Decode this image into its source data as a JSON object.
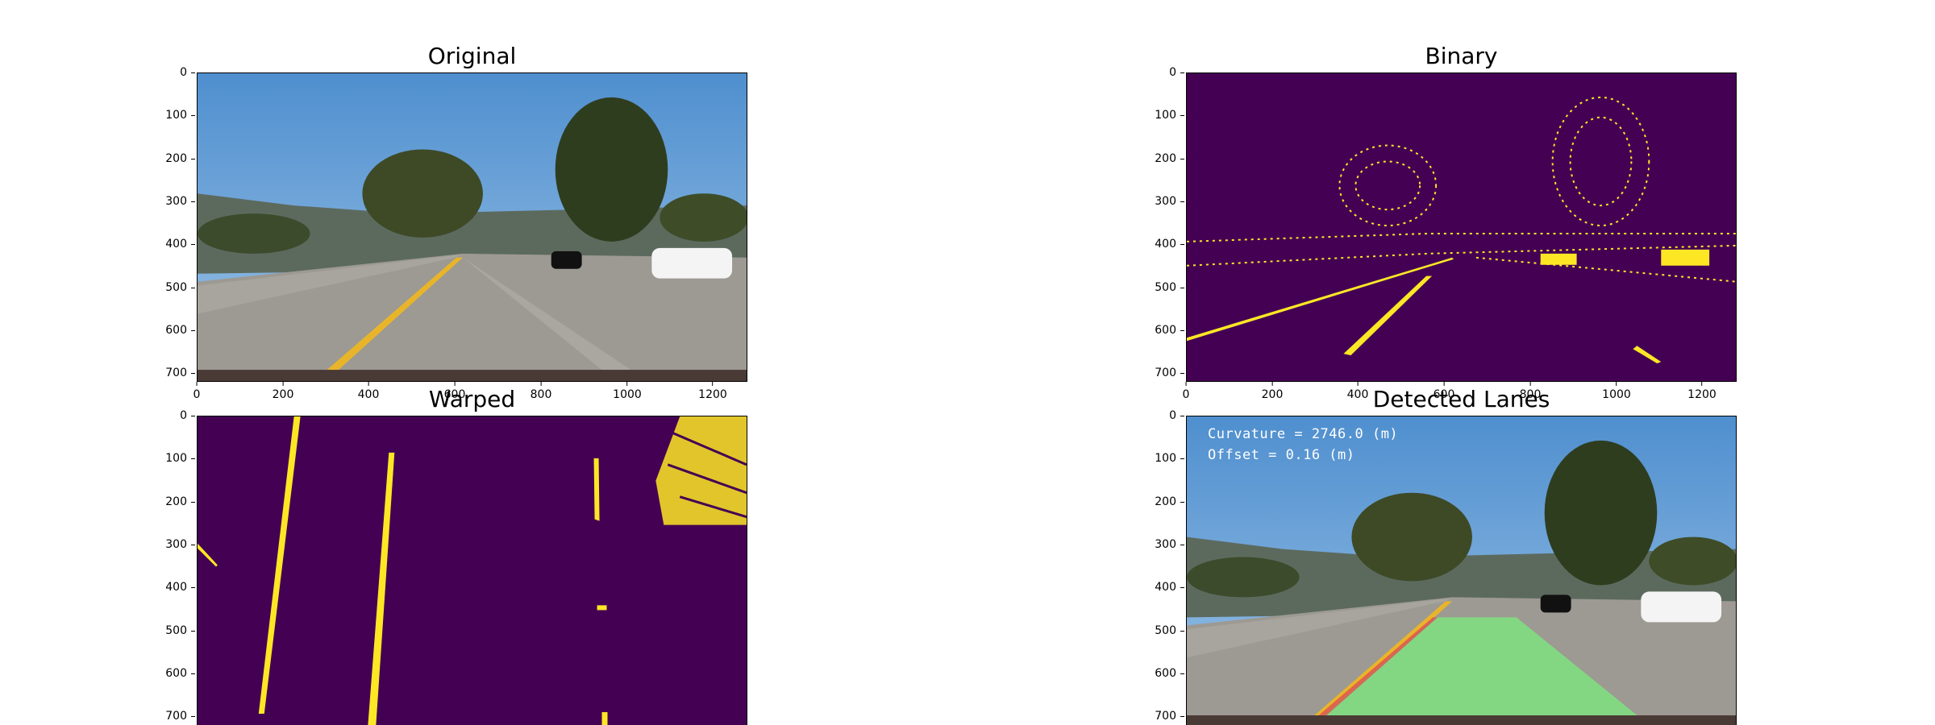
{
  "panels": {
    "original": {
      "title": "Original"
    },
    "binary": {
      "title": "Binary"
    },
    "warped": {
      "title": "Warped"
    },
    "detected": {
      "title": "Detected Lanes",
      "curvature": "Curvature = 2746.0 (m)",
      "offset": "Offset = 0.16 (m)"
    }
  },
  "axes": {
    "y_ticks": [
      "0",
      "100",
      "200",
      "300",
      "400",
      "500",
      "600",
      "700"
    ],
    "x_ticks": [
      "0",
      "200",
      "400",
      "600",
      "800",
      "1000",
      "1200"
    ]
  },
  "colors": {
    "viridis_dark": "#440154",
    "viridis_yellow": "#fde725",
    "sky": "#5a9ad4",
    "road": "#9c9892",
    "lane_fill": "#7fe27f"
  }
}
